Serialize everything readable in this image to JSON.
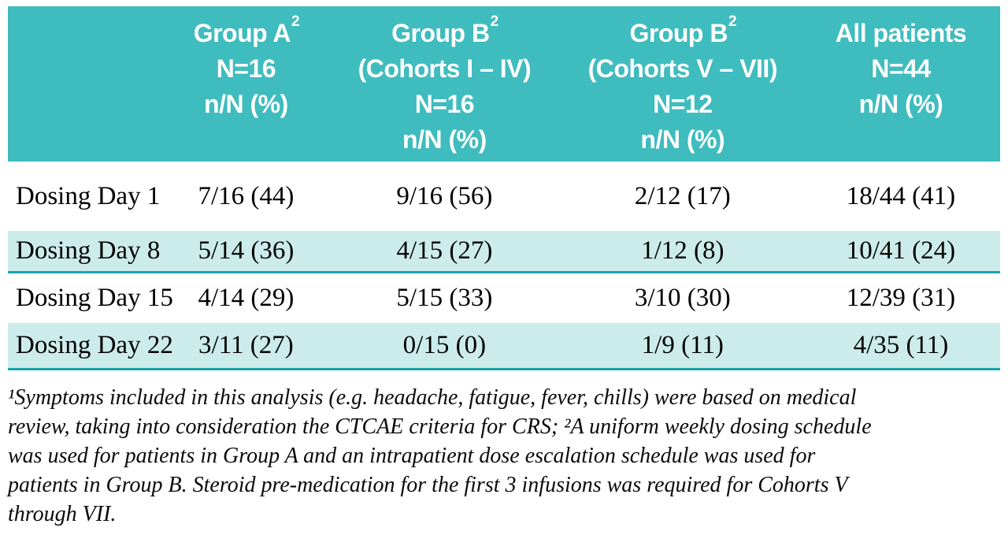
{
  "colors": {
    "header_bg": "#3FBCBE",
    "shaded_row_bg": "#CCECEB",
    "separator_line": "#18A4AB",
    "header_text": "#FFFFFF",
    "body_text": "#000000"
  },
  "table": {
    "header": {
      "columns": [
        {
          "name": "Group A",
          "sup": "2",
          "lines": [
            "N=16",
            "n/N (%)"
          ]
        },
        {
          "name": "Group B",
          "sup": "2",
          "lines": [
            "(Cohorts I – IV)",
            "N=16",
            "n/N (%)"
          ]
        },
        {
          "name": "Group B",
          "sup": "2",
          "lines": [
            "(Cohorts V – VII)",
            "N=12",
            "n/N (%)"
          ]
        },
        {
          "name": "All patients",
          "sup": "",
          "lines": [
            "N=44",
            "n/N (%)"
          ]
        }
      ]
    },
    "rows": [
      {
        "label": "Dosing Day 1",
        "values": [
          "7/16 (44)",
          "9/16 (56)",
          "2/12 (17)",
          "18/44 (41)"
        ]
      },
      {
        "label": "Dosing Day 8",
        "values": [
          "5/14 (36)",
          "4/15 (27)",
          "1/12 (8)",
          "10/41 (24)"
        ]
      },
      {
        "label": "Dosing Day 15",
        "values": [
          "4/14 (29)",
          "5/15 (33)",
          "3/10 (30)",
          "12/39 (31)"
        ]
      },
      {
        "label": "Dosing Day 22",
        "values": [
          "3/11 (27)",
          "0/15 (0)",
          "1/9 (11)",
          "4/35 (11)"
        ]
      }
    ]
  },
  "footnote": {
    "lines": [
      "¹Symptoms included in this analysis (e.g. headache, fatigue, fever, chills) were based on medical",
      "review, taking into consideration the CTCAE criteria for CRS; ²A uniform weekly dosing schedule",
      "was used for patients in Group A and an intrapatient dose escalation schedule was used for",
      "patients in Group B. Steroid pre-medication for the first 3 infusions was required for Cohorts V",
      "through VII."
    ]
  }
}
